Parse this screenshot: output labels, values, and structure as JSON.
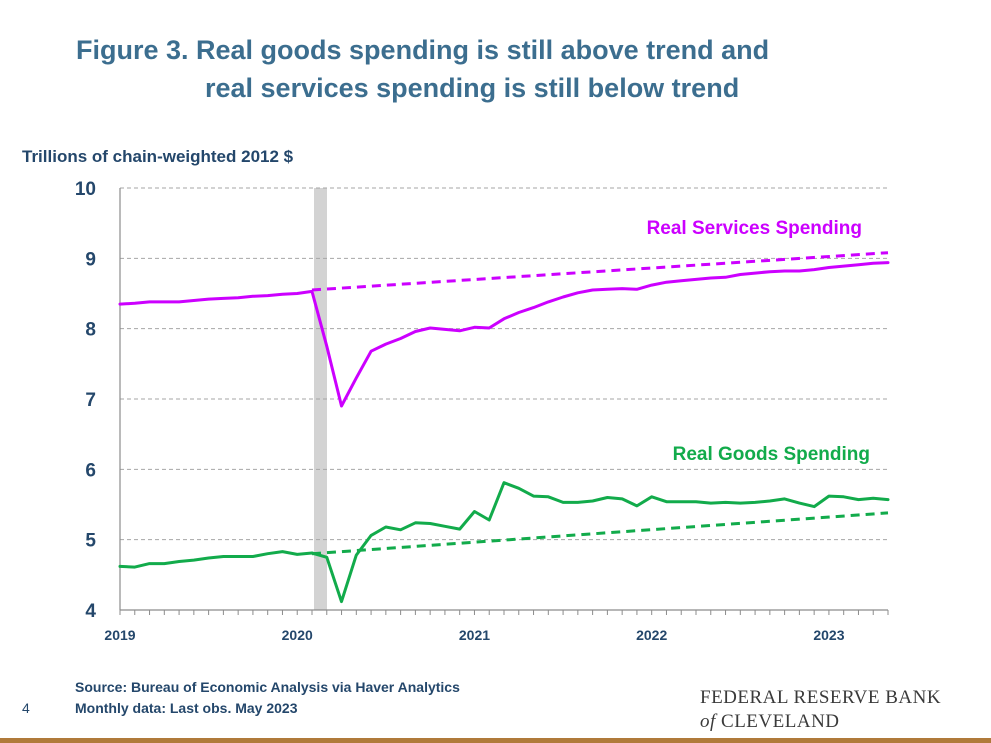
{
  "page": {
    "title_line1": "Figure 3. Real goods spending is still above trend and",
    "title_line2": "real services spending is still below trend",
    "source_line1": "Source: Bureau of Economic Analysis via Haver Analytics",
    "source_line2": "Monthly data: Last obs. May 2023",
    "page_number": "4",
    "logo_line1": "FEDERAL RESERVE BANK",
    "logo_line2_of": "of",
    "logo_line2_city": "CLEVELAND"
  },
  "colors": {
    "title": "#3c6e8f",
    "text": "#24476b",
    "services": "#cc00ff",
    "goods": "#12ab4b",
    "recession": "#d3d3d3",
    "grid": "#a6a6a6",
    "bottom_bar": "#b07a3a"
  },
  "chart_data": {
    "type": "line",
    "title": "Figure 3. Real goods spending is still above trend and real services spending is still below trend",
    "ylabel": "Trillions of chain-weighted 2012 $",
    "xlabel": "",
    "ylim": [
      4,
      10
    ],
    "yticks": [
      4,
      5,
      6,
      7,
      8,
      9,
      10
    ],
    "xlim": [
      "2019-01",
      "2023-05"
    ],
    "xticks": [
      "2019",
      "2020",
      "2021",
      "2022",
      "2023"
    ],
    "grid": "horizontal dashed",
    "recession_shading": {
      "start": "2020-02",
      "end": "2020-04"
    },
    "x": [
      "2019-01",
      "2019-02",
      "2019-03",
      "2019-04",
      "2019-05",
      "2019-06",
      "2019-07",
      "2019-08",
      "2019-09",
      "2019-10",
      "2019-11",
      "2019-12",
      "2020-01",
      "2020-02",
      "2020-03",
      "2020-04",
      "2020-05",
      "2020-06",
      "2020-07",
      "2020-08",
      "2020-09",
      "2020-10",
      "2020-11",
      "2020-12",
      "2021-01",
      "2021-02",
      "2021-03",
      "2021-04",
      "2021-05",
      "2021-06",
      "2021-07",
      "2021-08",
      "2021-09",
      "2021-10",
      "2021-11",
      "2021-12",
      "2022-01",
      "2022-02",
      "2022-03",
      "2022-04",
      "2022-05",
      "2022-06",
      "2022-07",
      "2022-08",
      "2022-09",
      "2022-10",
      "2022-11",
      "2022-12",
      "2023-01",
      "2023-02",
      "2023-03",
      "2023-04",
      "2023-05"
    ],
    "series": [
      {
        "name": "Real Services Spending",
        "color": "#cc00ff",
        "style": "solid",
        "values": [
          8.35,
          8.36,
          8.38,
          8.38,
          8.38,
          8.4,
          8.42,
          8.43,
          8.44,
          8.46,
          8.47,
          8.49,
          8.5,
          8.53,
          7.75,
          6.9,
          7.3,
          7.68,
          7.78,
          7.86,
          7.96,
          8.01,
          7.99,
          7.97,
          8.02,
          8.01,
          8.14,
          8.23,
          8.3,
          8.38,
          8.45,
          8.51,
          8.55,
          8.56,
          8.57,
          8.56,
          8.62,
          8.66,
          8.68,
          8.7,
          8.72,
          8.73,
          8.77,
          8.79,
          8.81,
          8.82,
          8.82,
          8.84,
          8.87,
          8.89,
          8.91,
          8.93,
          8.94
        ]
      },
      {
        "name": "Services trend",
        "color": "#cc00ff",
        "style": "dashed",
        "x_range": [
          "2020-02",
          "2023-05"
        ],
        "values_endpoints": [
          8.55,
          9.08
        ]
      },
      {
        "name": "Real Goods Spending",
        "color": "#12ab4b",
        "style": "solid",
        "values": [
          4.62,
          4.61,
          4.66,
          4.66,
          4.69,
          4.71,
          4.74,
          4.76,
          4.76,
          4.76,
          4.8,
          4.83,
          4.79,
          4.81,
          4.75,
          4.12,
          4.78,
          5.06,
          5.18,
          5.14,
          5.24,
          5.23,
          5.19,
          5.15,
          5.4,
          5.28,
          5.81,
          5.73,
          5.62,
          5.61,
          5.53,
          5.53,
          5.55,
          5.6,
          5.58,
          5.48,
          5.61,
          5.54,
          5.54,
          5.54,
          5.52,
          5.53,
          5.52,
          5.53,
          5.55,
          5.58,
          5.52,
          5.47,
          5.62,
          5.61,
          5.57,
          5.59,
          5.57
        ]
      },
      {
        "name": "Goods trend",
        "color": "#12ab4b",
        "style": "dashed",
        "x_range": [
          "2020-02",
          "2023-05"
        ],
        "values_endpoints": [
          4.8,
          5.38
        ]
      }
    ],
    "annotations": [
      {
        "text": "Real Services Spending",
        "series": "Real Services Spending"
      },
      {
        "text": "Real Goods Spending",
        "series": "Real Goods Spending"
      }
    ]
  }
}
